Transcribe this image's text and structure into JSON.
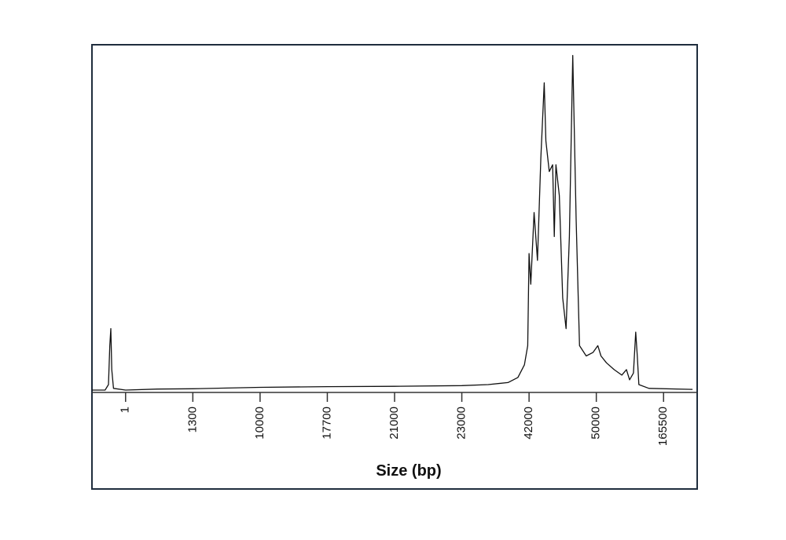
{
  "chart_data": {
    "type": "line",
    "x_label": "Size (bp)",
    "color": "#111111",
    "x": [
      0,
      0.39,
      0.49,
      0.53,
      0.56,
      0.59,
      0.64,
      1,
      618,
      1300,
      5756,
      10000,
      17700,
      21000,
      23000,
      30451,
      36039,
      38833,
      40696,
      41627,
      42000,
      42200,
      42600,
      43000,
      43400,
      43800,
      44000,
      44400,
      44800,
      45000,
      45200,
      45600,
      46000,
      46400,
      46800,
      47200,
      47600,
      48000,
      48800,
      49600,
      52655,
      57966,
      67264,
      80544,
      93824,
      101792,
      107104,
      113744,
      117728,
      120384,
      123040,
      140300,
      178000
    ],
    "values": [
      0,
      0,
      1.6,
      13,
      18,
      6,
      0.5,
      0,
      0.3,
      0.4,
      0.6,
      0.8,
      1,
      1.1,
      1.3,
      1.6,
      2.2,
      3.7,
      7.4,
      13,
      40,
      31,
      52,
      38,
      68,
      90,
      73,
      64,
      66,
      45,
      66,
      57,
      27,
      18,
      45,
      98,
      50,
      13,
      10,
      11,
      13,
      10,
      8,
      6,
      4.4,
      6,
      3,
      5,
      17,
      10,
      1.6,
      0.5,
      0.2
    ],
    "xlim": [
      0,
      180000
    ],
    "xticks": [
      1,
      1300,
      10000,
      17700,
      21000,
      23000,
      42000,
      50000,
      165500
    ],
    "ylim": [
      0,
      100
    ]
  }
}
